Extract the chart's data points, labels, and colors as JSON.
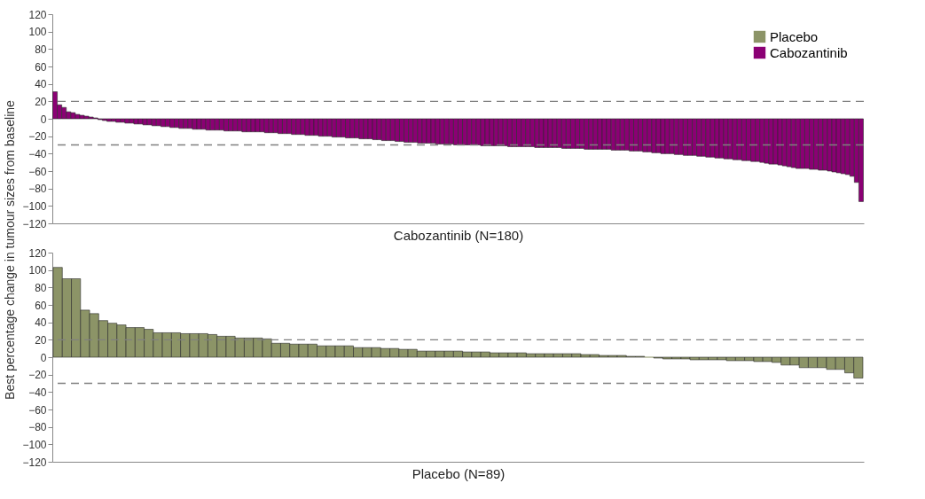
{
  "chart_data": [
    {
      "type": "bar",
      "xlabel": "Cabozantinib (N=180)",
      "ylabel": "Best percentage change in tumour sizes from baseline",
      "legend": "top right",
      "tick_labels": "y",
      "grid": false,
      "categories": [
        null,
        null,
        null,
        null,
        null,
        null,
        null,
        null,
        null,
        null,
        null,
        null,
        null,
        null,
        null,
        null,
        null,
        null,
        null,
        null,
        null,
        null,
        null,
        null,
        null,
        null,
        null,
        null,
        null,
        null,
        null,
        null,
        null,
        null,
        null,
        null,
        null,
        null,
        null,
        null,
        null,
        null,
        null,
        null,
        null,
        null,
        null,
        null,
        null,
        null,
        null,
        null,
        null,
        null,
        null,
        null,
        null,
        null,
        null,
        null,
        null,
        null,
        null,
        null,
        null,
        null,
        null,
        null,
        null,
        null,
        null,
        null,
        null,
        null,
        null,
        null,
        null,
        null,
        null,
        null,
        null,
        null,
        null,
        null,
        null,
        null,
        null,
        null,
        null,
        null,
        null,
        null,
        null,
        null,
        null,
        null,
        null,
        null,
        null,
        null,
        null,
        null,
        null,
        null,
        null,
        null,
        null,
        null,
        null,
        null,
        null,
        null,
        null,
        null,
        null,
        null,
        null,
        null,
        null,
        null,
        null,
        null,
        null,
        null,
        null,
        null,
        null,
        null,
        null,
        null,
        null,
        null,
        null,
        null,
        null,
        null,
        null,
        null,
        null,
        null,
        null,
        null,
        null,
        null,
        null,
        null,
        null,
        null,
        null,
        null,
        null,
        null,
        null,
        null,
        null,
        null,
        null,
        null,
        null,
        null,
        null,
        null,
        null,
        null,
        null,
        null,
        null,
        null,
        null,
        null,
        null,
        null,
        null,
        null,
        null,
        null,
        null,
        null,
        null,
        null
      ],
      "series": [
        {
          "name": "Cabozantinib",
          "color": "#8b0074",
          "values": [
            31,
            16,
            13,
            8,
            7,
            5,
            4,
            3,
            2,
            1,
            -1,
            -2,
            -3,
            -3,
            -4,
            -4,
            -5,
            -5,
            -6,
            -6,
            -7,
            -7,
            -8,
            -8,
            -9,
            -9,
            -10,
            -10,
            -11,
            -11,
            -11,
            -12,
            -12,
            -12,
            -13,
            -13,
            -13,
            -13,
            -14,
            -14,
            -14,
            -14,
            -15,
            -15,
            -15,
            -15,
            -15,
            -16,
            -16,
            -16,
            -17,
            -17,
            -17,
            -18,
            -18,
            -18,
            -19,
            -19,
            -19,
            -20,
            -20,
            -20,
            -21,
            -21,
            -21,
            -22,
            -22,
            -22,
            -23,
            -23,
            -23,
            -24,
            -24,
            -25,
            -25,
            -25,
            -26,
            -26,
            -27,
            -27,
            -27,
            -28,
            -28,
            -28,
            -28,
            -29,
            -29,
            -29,
            -29,
            -30,
            -30,
            -30,
            -30,
            -30,
            -30,
            -31,
            -31,
            -31,
            -31,
            -31,
            -31,
            -32,
            -32,
            -32,
            -32,
            -32,
            -32,
            -33,
            -33,
            -33,
            -33,
            -33,
            -33,
            -34,
            -34,
            -34,
            -34,
            -34,
            -35,
            -35,
            -35,
            -35,
            -35,
            -35,
            -36,
            -36,
            -36,
            -36,
            -37,
            -37,
            -37,
            -38,
            -38,
            -39,
            -39,
            -40,
            -40,
            -40,
            -41,
            -41,
            -42,
            -42,
            -42,
            -43,
            -43,
            -44,
            -44,
            -45,
            -45,
            -46,
            -46,
            -47,
            -47,
            -48,
            -48,
            -49,
            -49,
            -50,
            -51,
            -52,
            -52,
            -53,
            -54,
            -55,
            -56,
            -57,
            -57,
            -57,
            -58,
            -58,
            -59,
            -59,
            -60,
            -61,
            -62,
            -63,
            -64,
            -66,
            -73,
            -95
          ]
        }
      ],
      "ylim": [
        -120,
        120
      ],
      "yticks": [
        -120,
        -100,
        -80,
        -60,
        -40,
        -20,
        0,
        20,
        40,
        60,
        80,
        100,
        120
      ],
      "ref_lines": [
        {
          "axis": "y",
          "value": 20,
          "color": "#808080",
          "line_style": "dashed"
        },
        {
          "axis": "y",
          "value": -30,
          "color": "#808080",
          "line_style": "dashed"
        }
      ]
    },
    {
      "type": "bar",
      "xlabel": "Placebo (N=89)",
      "tick_labels": "y",
      "grid": false,
      "categories": [
        null,
        null,
        null,
        null,
        null,
        null,
        null,
        null,
        null,
        null,
        null,
        null,
        null,
        null,
        null,
        null,
        null,
        null,
        null,
        null,
        null,
        null,
        null,
        null,
        null,
        null,
        null,
        null,
        null,
        null,
        null,
        null,
        null,
        null,
        null,
        null,
        null,
        null,
        null,
        null,
        null,
        null,
        null,
        null,
        null,
        null,
        null,
        null,
        null,
        null,
        null,
        null,
        null,
        null,
        null,
        null,
        null,
        null,
        null,
        null,
        null,
        null,
        null,
        null,
        null,
        null,
        null,
        null,
        null,
        null,
        null,
        null,
        null,
        null,
        null,
        null,
        null,
        null,
        null,
        null,
        null,
        null,
        null,
        null,
        null,
        null,
        null,
        null,
        null
      ],
      "series": [
        {
          "name": "Placebo",
          "color": "#8c9467",
          "values": [
            103,
            90,
            90,
            54,
            50,
            42,
            39,
            37,
            34,
            34,
            32,
            28,
            28,
            28,
            27,
            27,
            27,
            26,
            24,
            24,
            22,
            22,
            22,
            21,
            16,
            16,
            15,
            15,
            15,
            13,
            13,
            13,
            13,
            11,
            11,
            11,
            10,
            10,
            9,
            9,
            7,
            7,
            7,
            7,
            7,
            6,
            6,
            6,
            5,
            5,
            5,
            5,
            4,
            4,
            4,
            4,
            4,
            4,
            3,
            3,
            2,
            2,
            2,
            1,
            1,
            0,
            -1,
            -2,
            -2,
            -2,
            -3,
            -3,
            -3,
            -3,
            -4,
            -4,
            -4,
            -5,
            -5,
            -6,
            -9,
            -9,
            -12,
            -12,
            -12,
            -14,
            -14,
            -18,
            -24
          ]
        }
      ],
      "ylim": [
        -120,
        120
      ],
      "yticks": [
        -120,
        -100,
        -80,
        -60,
        -40,
        -20,
        0,
        20,
        40,
        60,
        80,
        100,
        120
      ],
      "ref_lines": [
        {
          "axis": "y",
          "value": 20,
          "color": "#808080",
          "line_style": "dashed"
        },
        {
          "axis": "y",
          "value": -30,
          "color": "#808080",
          "line_style": "dashed"
        }
      ]
    }
  ]
}
